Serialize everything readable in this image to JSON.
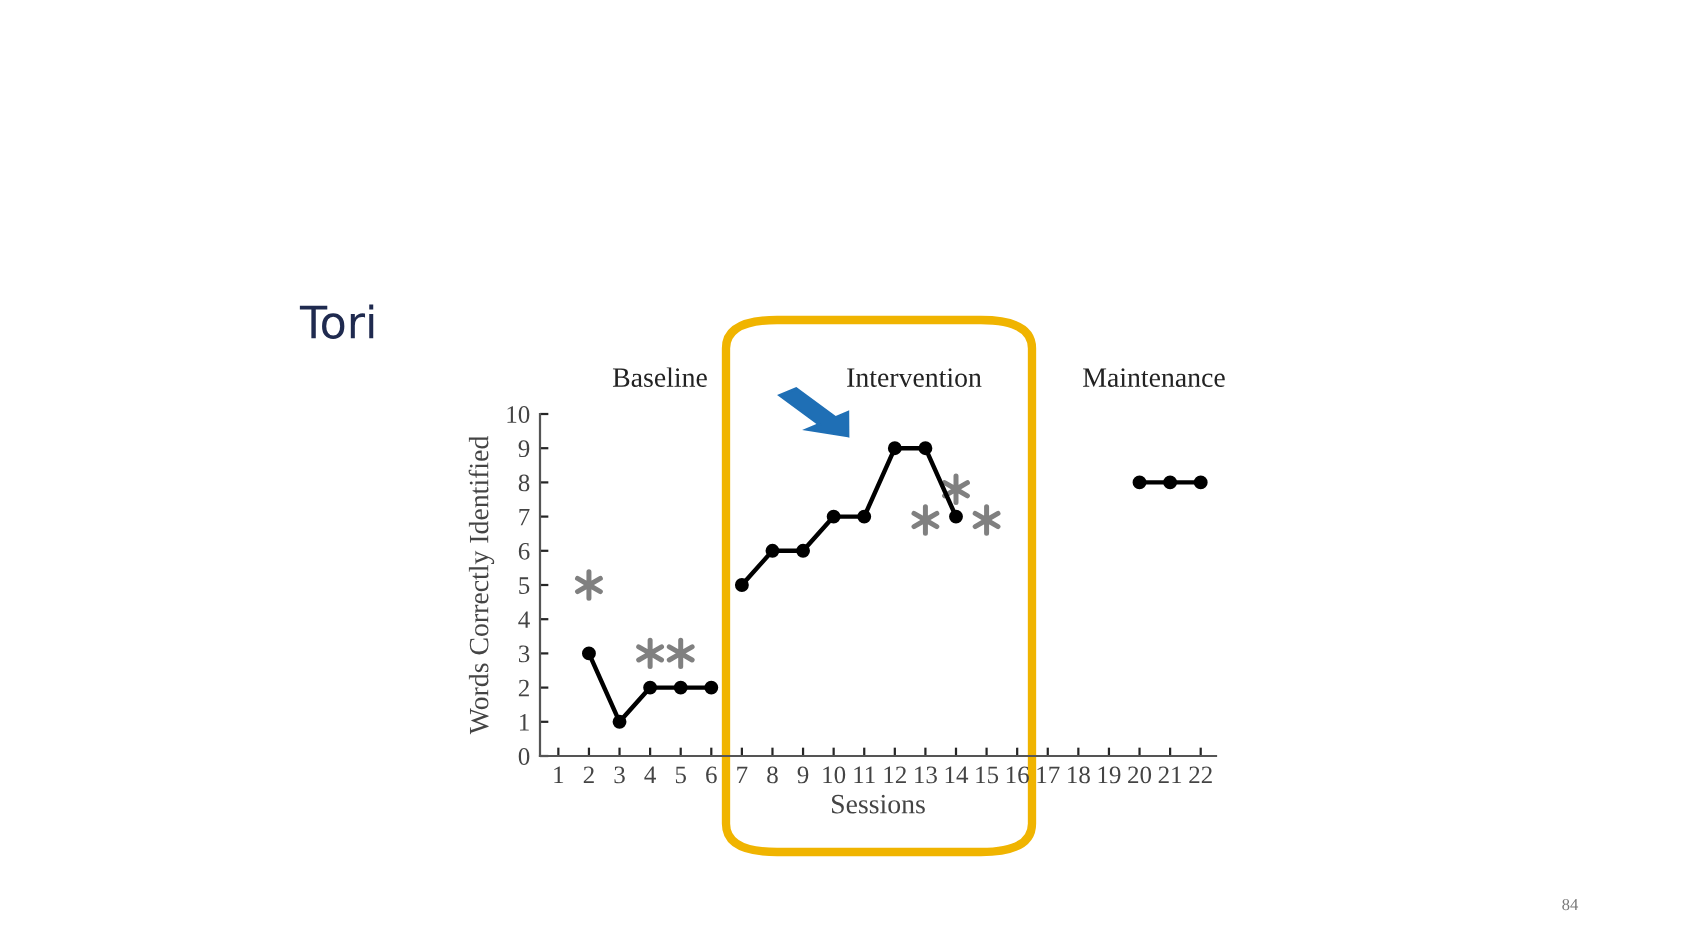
{
  "chart_data": {
    "type": "line",
    "title": "Tori",
    "xlabel": "Sessions",
    "ylabel": "Words Correctly Identified",
    "categories": [
      "1",
      "2",
      "3",
      "4",
      "5",
      "6",
      "7",
      "8",
      "9",
      "10",
      "11",
      "12",
      "13",
      "14",
      "15",
      "16",
      "17",
      "18",
      "19",
      "20",
      "21",
      "22"
    ],
    "series": [
      {
        "color": "#000000",
        "values": [
          null,
          3,
          1,
          2,
          2,
          2,
          null,
          null,
          null,
          null,
          null,
          null,
          null,
          null,
          null,
          null,
          null,
          null,
          null,
          null,
          null,
          null
        ]
      },
      {
        "color": "#000000",
        "values": [
          null,
          null,
          null,
          null,
          null,
          null,
          5,
          6,
          6,
          7,
          7,
          9,
          9,
          7,
          null,
          null,
          null,
          null,
          null,
          null,
          null,
          null
        ]
      },
      {
        "color": "#000000",
        "values": [
          null,
          null,
          null,
          null,
          null,
          null,
          null,
          null,
          null,
          null,
          null,
          null,
          null,
          null,
          null,
          null,
          null,
          null,
          null,
          8,
          8,
          8
        ]
      },
      {
        "type": "scatter",
        "marker": "cross",
        "color": "#808080",
        "values": [
          null,
          5,
          null,
          3,
          3,
          null,
          null,
          null,
          null,
          null,
          null,
          null,
          6.9,
          7.8,
          6.9,
          null,
          null,
          null,
          null,
          null,
          null,
          null
        ]
      }
    ],
    "marker": "circle",
    "line_style": "solid",
    "grid": false,
    "legend": false,
    "ylim": [
      0,
      10
    ],
    "yticks": [
      0,
      1,
      2,
      3,
      4,
      5,
      6,
      7,
      8,
      9,
      10
    ],
    "annotations": [
      "Baseline",
      "Intervention",
      "Maintenance",
      "84"
    ]
  }
}
